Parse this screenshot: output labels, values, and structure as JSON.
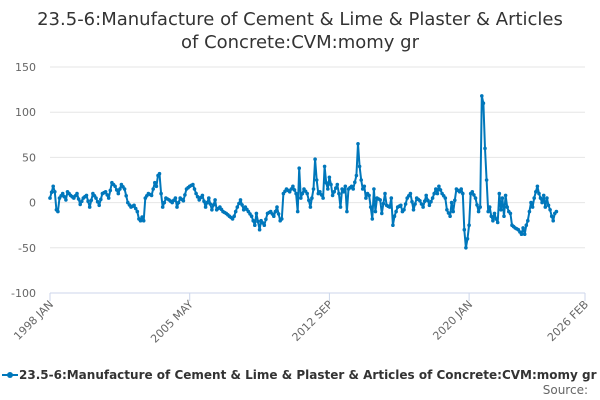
{
  "chart_data": {
    "type": "line",
    "title_lines": [
      "23.5-6:Manufacture of Cement & Lime & Plaster & Articles",
      "of Concrete:CVM:momy gr"
    ],
    "xlabel": "",
    "ylabel": "",
    "ylim": [
      -100,
      150
    ],
    "yticks": [
      -100,
      -50,
      0,
      50,
      100,
      150
    ],
    "x_tick_labels": [
      "1998 JAN",
      "2005 MAY",
      "2012 SEP",
      "2020 JAN",
      "2026 FEB"
    ],
    "x_tick_months": [
      0,
      88,
      176,
      264,
      337
    ],
    "x_range_months": [
      0,
      337
    ],
    "grid": "horizontal",
    "legend": "bottom",
    "color": "#0077bb",
    "series": [
      {
        "name": "23.5-6:Manufacture of Cement & Lime & Plaster & Articles of Concrete:CVM:momy gr",
        "anchors": [
          [
            0,
            5
          ],
          [
            2,
            18
          ],
          [
            3,
            12
          ],
          [
            4,
            -8
          ],
          [
            5,
            -10
          ],
          [
            6,
            5
          ],
          [
            8,
            10
          ],
          [
            10,
            3
          ],
          [
            11,
            12
          ],
          [
            13,
            8
          ],
          [
            15,
            5
          ],
          [
            17,
            10
          ],
          [
            19,
            -2
          ],
          [
            21,
            5
          ],
          [
            23,
            8
          ],
          [
            25,
            -5
          ],
          [
            27,
            10
          ],
          [
            29,
            5
          ],
          [
            31,
            -3
          ],
          [
            33,
            10
          ],
          [
            35,
            12
          ],
          [
            37,
            5
          ],
          [
            39,
            22
          ],
          [
            41,
            18
          ],
          [
            43,
            10
          ],
          [
            45,
            20
          ],
          [
            47,
            15
          ],
          [
            49,
            0
          ],
          [
            51,
            -5
          ],
          [
            53,
            -3
          ],
          [
            55,
            -10
          ],
          [
            56,
            -18
          ],
          [
            57,
            -20
          ],
          [
            58,
            -16
          ],
          [
            59,
            -20
          ],
          [
            60,
            5
          ],
          [
            62,
            10
          ],
          [
            64,
            8
          ],
          [
            66,
            22
          ],
          [
            67,
            18
          ],
          [
            68,
            30
          ],
          [
            69,
            32
          ],
          [
            70,
            10
          ],
          [
            71,
            -5
          ],
          [
            73,
            5
          ],
          [
            75,
            3
          ],
          [
            77,
            0
          ],
          [
            79,
            5
          ],
          [
            80,
            -5
          ],
          [
            82,
            5
          ],
          [
            84,
            2
          ],
          [
            86,
            15
          ],
          [
            88,
            18
          ],
          [
            90,
            20
          ],
          [
            92,
            10
          ],
          [
            94,
            3
          ],
          [
            96,
            8
          ],
          [
            98,
            -5
          ],
          [
            100,
            5
          ],
          [
            102,
            -8
          ],
          [
            104,
            3
          ],
          [
            105,
            -8
          ],
          [
            107,
            -5
          ],
          [
            109,
            -10
          ],
          [
            111,
            -12
          ],
          [
            113,
            -15
          ],
          [
            115,
            -18
          ],
          [
            116,
            -15
          ],
          [
            118,
            -5
          ],
          [
            120,
            3
          ],
          [
            122,
            -8
          ],
          [
            123,
            -5
          ],
          [
            125,
            -10
          ],
          [
            127,
            -15
          ],
          [
            129,
            -25
          ],
          [
            130,
            -12
          ],
          [
            132,
            -30
          ],
          [
            133,
            -20
          ],
          [
            135,
            -25
          ],
          [
            137,
            -12
          ],
          [
            139,
            -10
          ],
          [
            141,
            -15
          ],
          [
            143,
            -5
          ],
          [
            145,
            -20
          ],
          [
            146,
            -18
          ],
          [
            147,
            10
          ],
          [
            149,
            15
          ],
          [
            151,
            12
          ],
          [
            153,
            18
          ],
          [
            155,
            10
          ],
          [
            156,
            -10
          ],
          [
            157,
            38
          ],
          [
            158,
            5
          ],
          [
            160,
            15
          ],
          [
            162,
            10
          ],
          [
            164,
            -5
          ],
          [
            165,
            5
          ],
          [
            166,
            15
          ],
          [
            167,
            48
          ],
          [
            168,
            25
          ],
          [
            169,
            10
          ],
          [
            170,
            12
          ],
          [
            172,
            5
          ],
          [
            173,
            40
          ],
          [
            174,
            22
          ],
          [
            175,
            15
          ],
          [
            176,
            28
          ],
          [
            177,
            20
          ],
          [
            178,
            8
          ],
          [
            179,
            12
          ],
          [
            181,
            20
          ],
          [
            182,
            10
          ],
          [
            183,
            -5
          ],
          [
            184,
            15
          ],
          [
            185,
            12
          ],
          [
            186,
            18
          ],
          [
            187,
            -10
          ],
          [
            188,
            15
          ],
          [
            190,
            18
          ],
          [
            191,
            15
          ],
          [
            193,
            30
          ],
          [
            194,
            65
          ],
          [
            195,
            40
          ],
          [
            196,
            25
          ],
          [
            197,
            15
          ],
          [
            198,
            18
          ],
          [
            199,
            5
          ],
          [
            200,
            10
          ],
          [
            201,
            8
          ],
          [
            202,
            -5
          ],
          [
            203,
            -18
          ],
          [
            204,
            15
          ],
          [
            205,
            -10
          ],
          [
            206,
            5
          ],
          [
            208,
            3
          ],
          [
            209,
            -12
          ],
          [
            211,
            10
          ],
          [
            212,
            -3
          ],
          [
            214,
            -5
          ],
          [
            215,
            5
          ],
          [
            216,
            -25
          ],
          [
            217,
            -15
          ],
          [
            218,
            -10
          ],
          [
            219,
            -5
          ],
          [
            221,
            -3
          ],
          [
            222,
            -10
          ],
          [
            223,
            -8
          ],
          [
            225,
            5
          ],
          [
            227,
            10
          ],
          [
            229,
            -8
          ],
          [
            231,
            5
          ],
          [
            233,
            2
          ],
          [
            235,
            -5
          ],
          [
            237,
            8
          ],
          [
            239,
            -3
          ],
          [
            241,
            5
          ],
          [
            243,
            15
          ],
          [
            244,
            10
          ],
          [
            245,
            18
          ],
          [
            247,
            10
          ],
          [
            249,
            5
          ],
          [
            250,
            -8
          ],
          [
            252,
            -15
          ],
          [
            253,
            0
          ],
          [
            254,
            -10
          ],
          [
            256,
            15
          ],
          [
            258,
            12
          ],
          [
            259,
            15
          ],
          [
            260,
            10
          ],
          [
            261,
            -30
          ],
          [
            262,
            -50
          ],
          [
            263,
            -40
          ],
          [
            264,
            -25
          ],
          [
            265,
            10
          ],
          [
            266,
            12
          ],
          [
            268,
            5
          ],
          [
            270,
            -10
          ],
          [
            271,
            -5
          ],
          [
            272,
            118
          ],
          [
            273,
            110
          ],
          [
            274,
            60
          ],
          [
            275,
            25
          ],
          [
            276,
            -10
          ],
          [
            277,
            -5
          ],
          [
            278,
            -15
          ],
          [
            279,
            -20
          ],
          [
            280,
            -12
          ],
          [
            281,
            -18
          ],
          [
            282,
            -22
          ],
          [
            283,
            10
          ],
          [
            284,
            -8
          ],
          [
            285,
            5
          ],
          [
            286,
            -15
          ],
          [
            287,
            8
          ],
          [
            288,
            -5
          ],
          [
            289,
            -10
          ],
          [
            290,
            -12
          ],
          [
            291,
            -25
          ],
          [
            293,
            -28
          ],
          [
            295,
            -30
          ],
          [
            297,
            -35
          ],
          [
            298,
            -28
          ],
          [
            299,
            -35
          ],
          [
            300,
            -25
          ],
          [
            301,
            -20
          ],
          [
            302,
            -10
          ],
          [
            303,
            0
          ],
          [
            304,
            -5
          ],
          [
            305,
            5
          ],
          [
            306,
            12
          ],
          [
            307,
            18
          ],
          [
            308,
            10
          ],
          [
            309,
            5
          ],
          [
            310,
            0
          ],
          [
            311,
            8
          ],
          [
            312,
            -5
          ],
          [
            313,
            5
          ],
          [
            314,
            -3
          ],
          [
            315,
            -8
          ],
          [
            316,
            -15
          ],
          [
            317,
            -20
          ],
          [
            318,
            -12
          ],
          [
            319,
            -10
          ]
        ]
      }
    ]
  },
  "legend_label": "23.5-6:Manufacture of Cement & Lime & Plaster & Articles of Concrete:CVM:momy gr",
  "source_label": "Source:"
}
